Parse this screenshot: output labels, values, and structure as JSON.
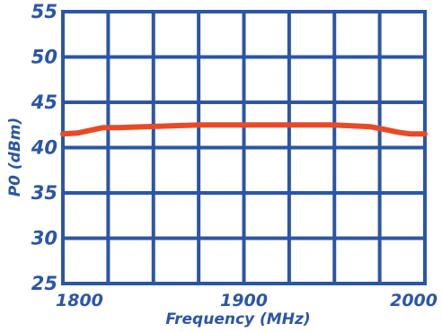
{
  "chart_data": {
    "type": "line",
    "title": "",
    "xlabel": "Frequency (MHz)",
    "ylabel": "P0 (dBm)",
    "xlim": [
      1800,
      2000
    ],
    "ylim": [
      25,
      55
    ],
    "x_ticks": [
      1800,
      1900,
      2000
    ],
    "x_tick_labels": [
      "1800",
      "1900",
      "2000"
    ],
    "y_ticks": [
      25,
      30,
      35,
      40,
      45,
      50,
      55
    ],
    "y_tick_labels": [
      "25",
      "30",
      "35",
      "40",
      "45",
      "50",
      "55"
    ],
    "grid": true,
    "series": [
      {
        "x": [
          1800,
          1808,
          1815,
          1822,
          1830,
          1845,
          1860,
          1875,
          1890,
          1900,
          1910,
          1925,
          1940,
          1950,
          1960,
          1970,
          1978,
          1985,
          1992,
          2000
        ],
        "y": [
          41.5,
          41.6,
          41.9,
          42.2,
          42.2,
          42.3,
          42.4,
          42.5,
          42.5,
          42.5,
          42.5,
          42.5,
          42.5,
          42.5,
          42.4,
          42.3,
          42.0,
          41.7,
          41.5,
          41.5
        ]
      }
    ],
    "colors": {
      "grid": "#2b55a8",
      "text": "#2b55a8",
      "line": "#e84a26",
      "background": "#ffffff"
    }
  }
}
